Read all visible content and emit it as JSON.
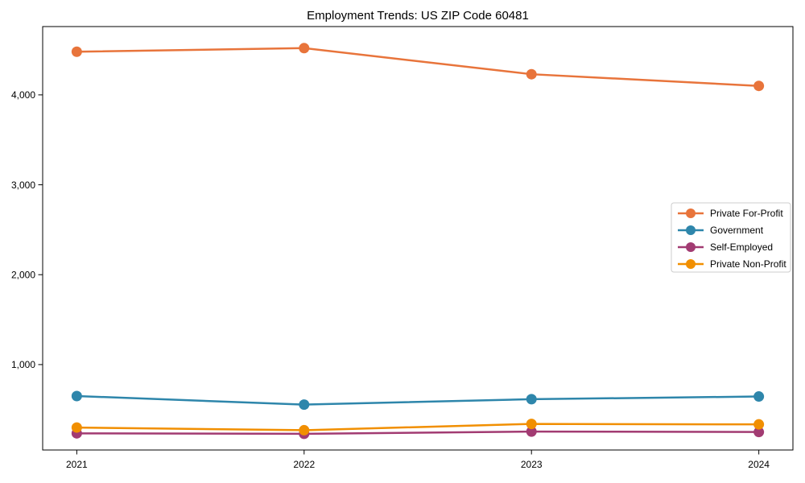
{
  "chart_data": {
    "type": "line",
    "title": "Employment Trends: US ZIP Code 60481",
    "xlabel": "",
    "ylabel": "",
    "categories": [
      "2021",
      "2022",
      "2023",
      "2024"
    ],
    "y_ticks": [
      1000,
      2000,
      3000,
      4000
    ],
    "y_tick_labels": [
      "1,000",
      "2,000",
      "3,000",
      "4,000"
    ],
    "ylim": [
      50,
      4760
    ],
    "x_margin": 0.15,
    "grid": false,
    "background": "#ffffff",
    "axis_color": "#000000",
    "legend": {
      "position": "center-right",
      "border_color": "#cccccc",
      "background": "#ffffff",
      "entries": [
        "Private For-Profit",
        "Government",
        "Self-Employed",
        "Private Non-Profit"
      ]
    },
    "series": [
      {
        "name": "Private For-Profit",
        "color": "#e8743b",
        "values": [
          4480,
          4520,
          4230,
          4100
        ]
      },
      {
        "name": "Government",
        "color": "#2e86ab",
        "values": [
          650,
          555,
          615,
          645
        ]
      },
      {
        "name": "Self-Employed",
        "color": "#a23b72",
        "values": [
          235,
          230,
          255,
          250
        ]
      },
      {
        "name": "Private Non-Profit",
        "color": "#f18f01",
        "values": [
          300,
          270,
          340,
          335
        ]
      }
    ]
  }
}
